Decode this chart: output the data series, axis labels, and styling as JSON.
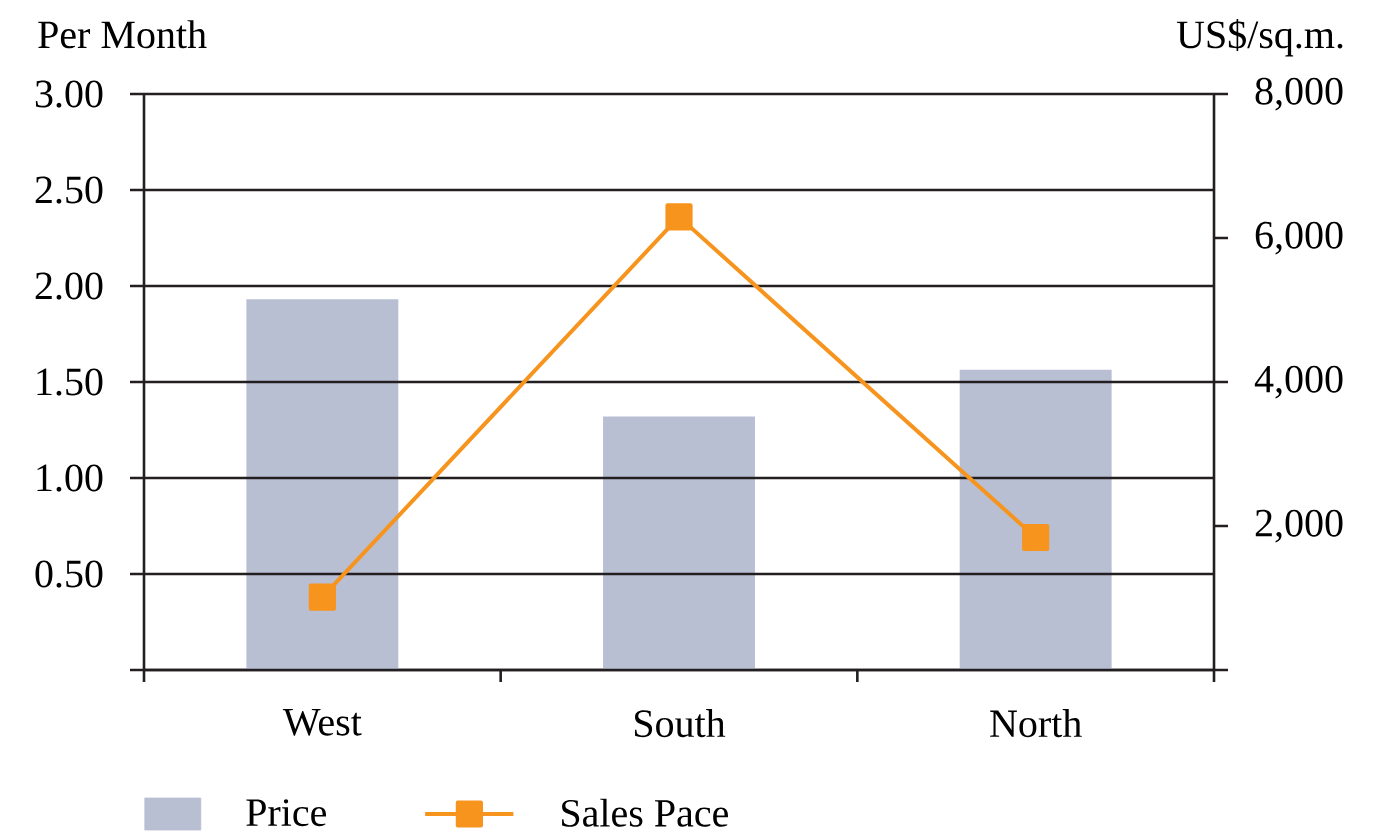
{
  "chart_data": {
    "type": "bar",
    "categories": [
      "West",
      "South",
      "North"
    ],
    "series": [
      {
        "name": "Price",
        "axis": "y2",
        "color": "#b9bfd3",
        "values": [
          5150,
          3520,
          4170
        ]
      },
      {
        "name": "Sales Pace",
        "type": "line",
        "color": "#f7941d",
        "values": [
          0.38,
          2.36,
          0.69
        ]
      }
    ],
    "ylabel": "Per Month",
    "y2label": "US$/sq.m.",
    "ylim": [
      0,
      3
    ],
    "yticks": [
      {
        "value": 0,
        "label": null
      },
      {
        "value": 0.5,
        "label": "0.50"
      },
      {
        "value": 1,
        "label": "1.00"
      },
      {
        "value": 1.5,
        "label": "1.50"
      },
      {
        "value": 2,
        "label": "2.00"
      },
      {
        "value": 2.5,
        "label": "2.50"
      },
      {
        "value": 3,
        "label": "3.00"
      }
    ],
    "y2lim": [
      0,
      8000
    ],
    "y2ticks": [
      {
        "value": 0,
        "label": null
      },
      {
        "value": 2000,
        "label": "2,000"
      },
      {
        "value": 4000,
        "label": "4,000"
      },
      {
        "value": 6000,
        "label": "6,000"
      },
      {
        "value": 8000,
        "label": "8,000"
      }
    ],
    "grid": "y",
    "legend": "bottom",
    "marker": "square",
    "line_style": "solid"
  }
}
